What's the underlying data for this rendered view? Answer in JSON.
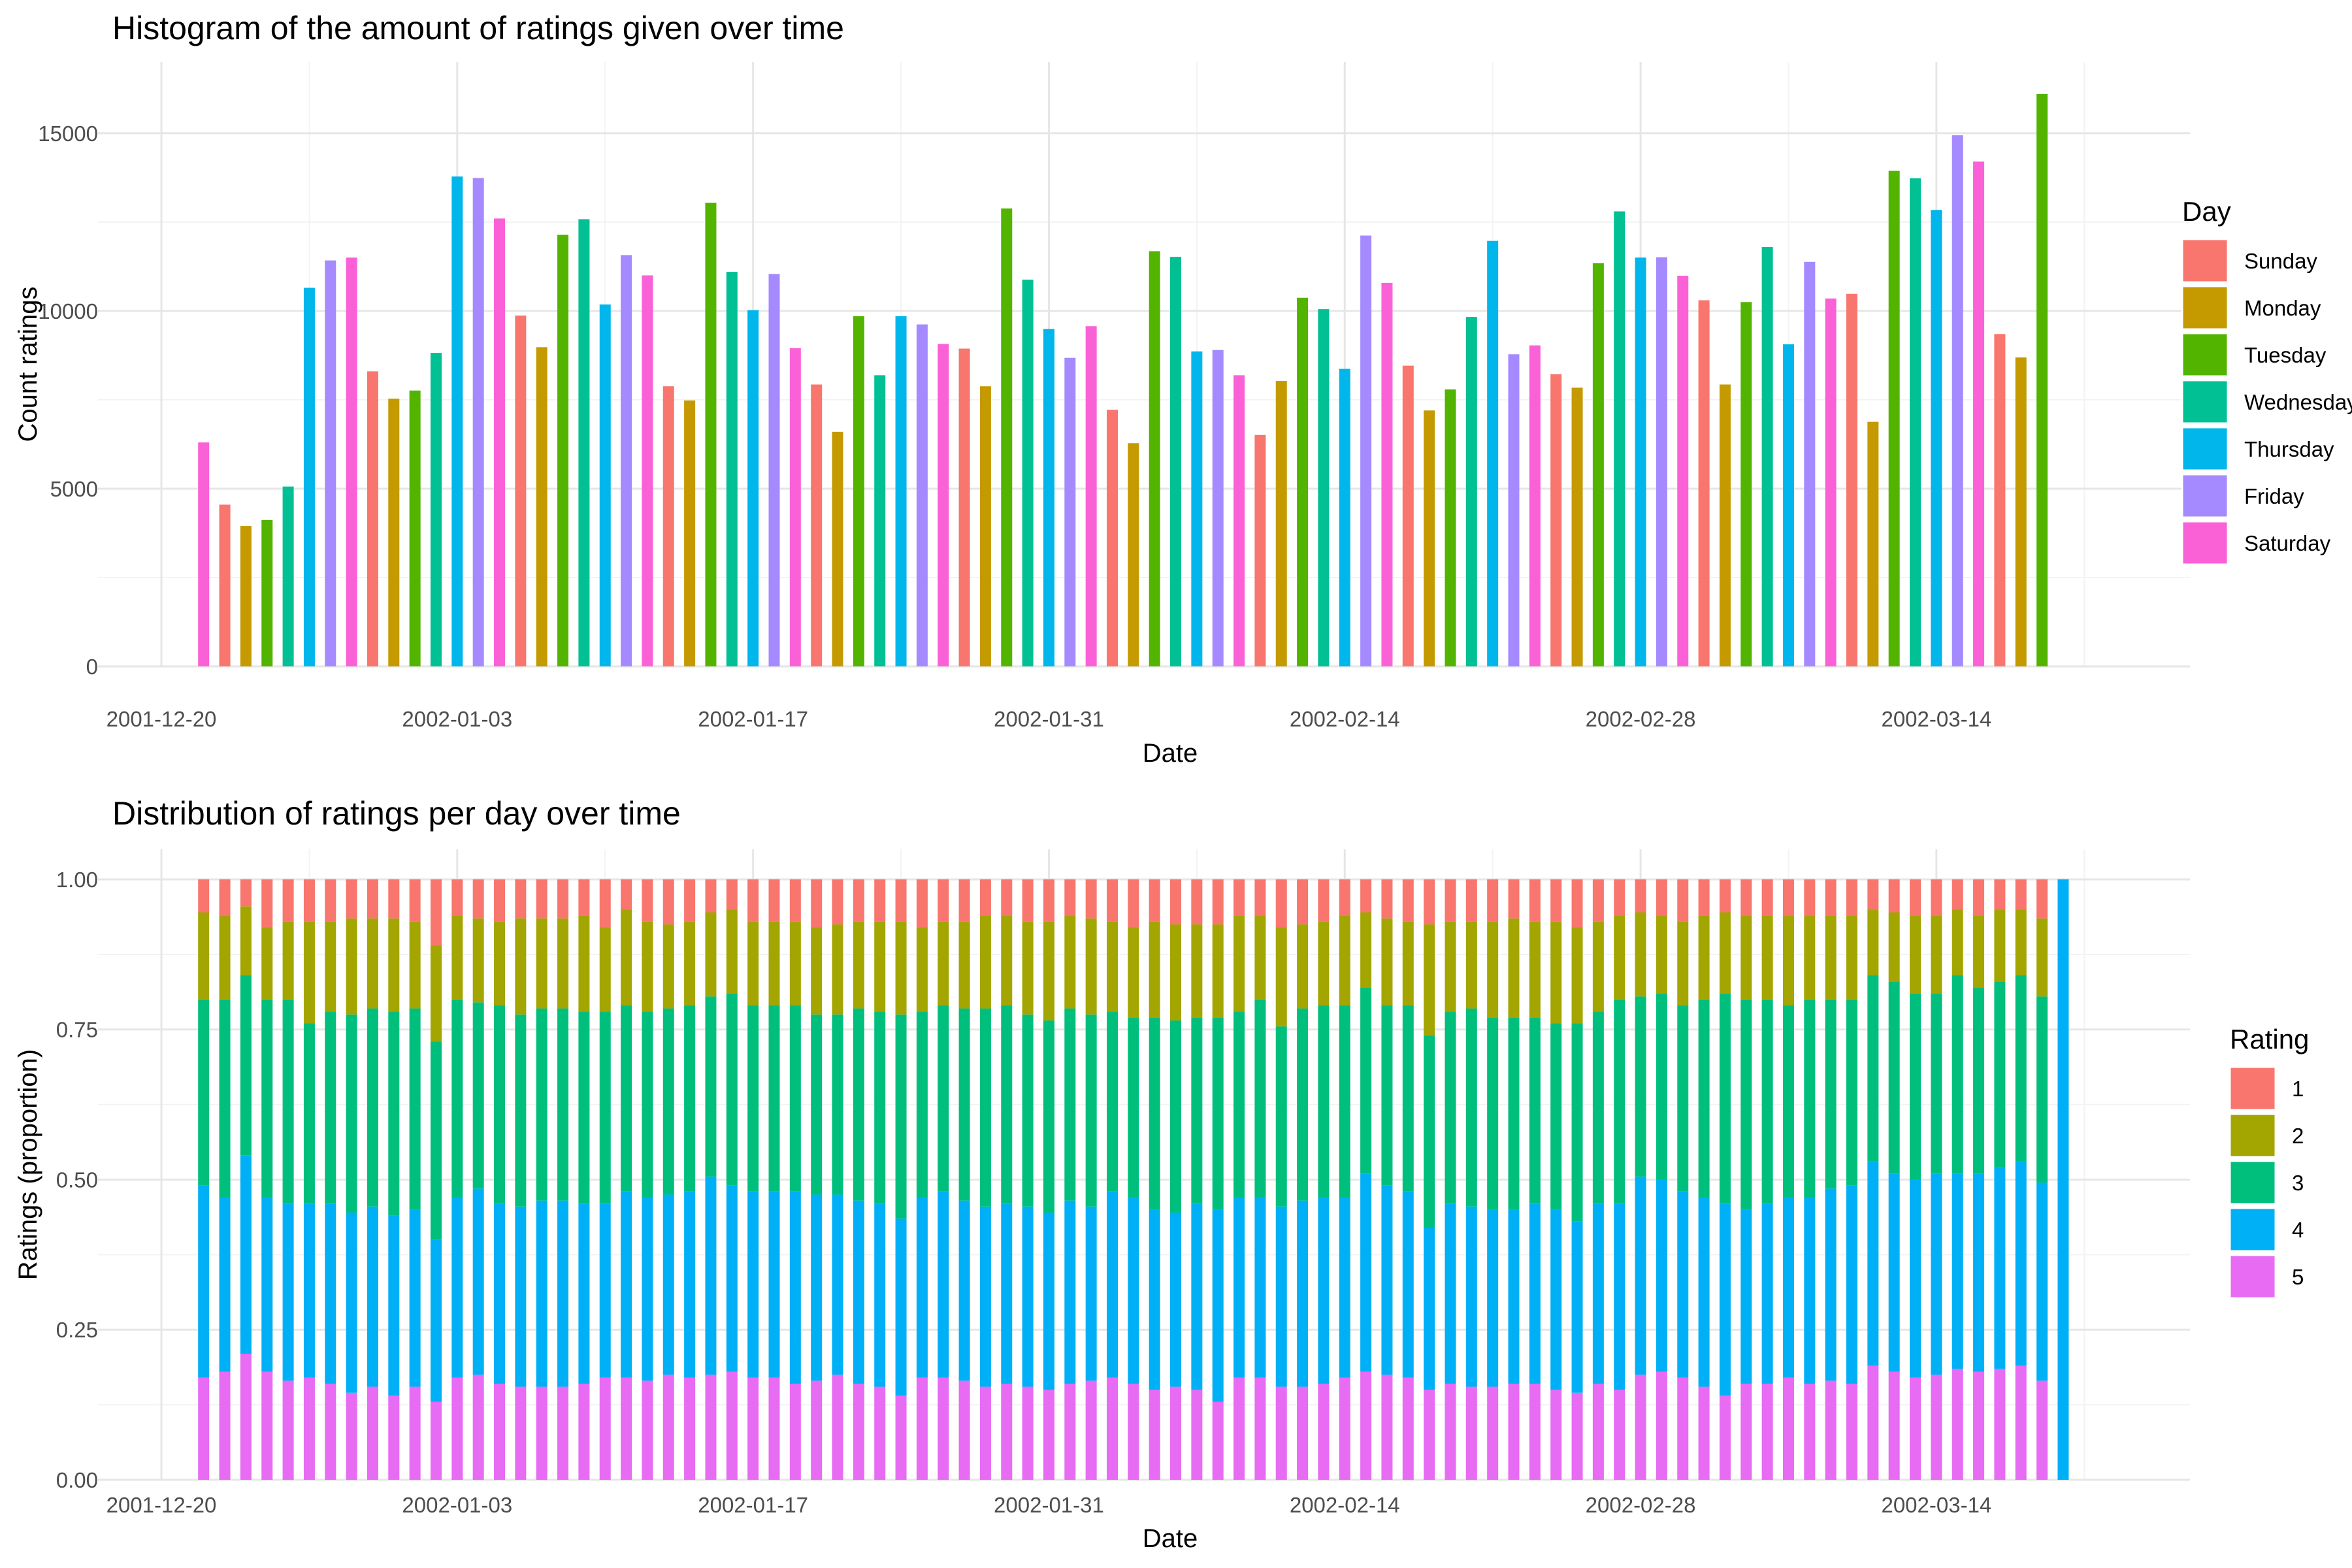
{
  "chart_data": [
    {
      "type": "bar",
      "title": "Histogram of the amount of ratings given over time",
      "xlabel": "Date",
      "ylabel": "Count ratings",
      "x_ticks": [
        "2001-12-20",
        "2002-01-03",
        "2002-01-17",
        "2002-01-31",
        "2002-02-14",
        "2002-02-28",
        "2002-03-14"
      ],
      "y_ticks": [
        "0",
        "5000",
        "10000",
        "15000"
      ],
      "ylim": [
        0,
        17000
      ],
      "xlim": [
        "2001-12-17",
        "2002-03-26"
      ],
      "grid": true,
      "legend": {
        "title": "Day",
        "position": "right",
        "entries": [
          "Sunday",
          "Monday",
          "Tuesday",
          "Wednesday",
          "Thursday",
          "Friday",
          "Saturday"
        ]
      },
      "colors": {
        "Sunday": "#F8766D",
        "Monday": "#C49A00",
        "Tuesday": "#53B400",
        "Wednesday": "#00C094",
        "Thursday": "#00B6EB",
        "Friday": "#A58AFF",
        "Saturday": "#FB61D7"
      },
      "start_date": "2001-12-22",
      "dates": [
        "2001-12-22",
        "2001-12-23",
        "2001-12-24",
        "2001-12-25",
        "2001-12-26",
        "2001-12-27",
        "2001-12-28",
        "2001-12-29",
        "2001-12-30",
        "2001-12-31",
        "2002-01-01",
        "2002-01-02",
        "2002-01-03",
        "2002-01-04",
        "2002-01-05",
        "2002-01-06",
        "2002-01-07",
        "2002-01-08",
        "2002-01-09",
        "2002-01-10",
        "2002-01-11",
        "2002-01-12",
        "2002-01-13",
        "2002-01-14",
        "2002-01-15",
        "2002-01-16",
        "2002-01-17",
        "2002-01-18",
        "2002-01-19",
        "2002-01-20",
        "2002-01-21",
        "2002-01-22",
        "2002-01-23",
        "2002-01-24",
        "2002-01-25",
        "2002-01-26",
        "2002-01-27",
        "2002-01-28",
        "2002-01-29",
        "2002-01-30",
        "2002-01-31",
        "2002-02-01",
        "2002-02-02",
        "2002-02-03",
        "2002-02-04",
        "2002-02-05",
        "2002-02-06",
        "2002-02-07",
        "2002-02-08",
        "2002-02-09",
        "2002-02-10",
        "2002-02-11",
        "2002-02-12",
        "2002-02-13",
        "2002-02-14",
        "2002-02-15",
        "2002-02-16",
        "2002-02-17",
        "2002-02-18",
        "2002-02-19",
        "2002-02-20",
        "2002-02-21",
        "2002-02-22",
        "2002-02-23",
        "2002-02-24",
        "2002-02-25",
        "2002-02-26",
        "2002-02-27",
        "2002-02-28",
        "2002-03-01",
        "2002-03-02",
        "2002-03-03",
        "2002-03-04",
        "2002-03-05",
        "2002-03-06",
        "2002-03-07",
        "2002-03-08",
        "2002-03-09",
        "2002-03-10",
        "2002-03-11",
        "2002-03-12",
        "2002-03-13",
        "2002-03-14",
        "2002-03-15",
        "2002-03-16",
        "2002-03-17",
        "2002-03-18",
        "2002-03-19"
      ],
      "values": [
        6300,
        4550,
        3950,
        4120,
        5060,
        10650,
        11420,
        11500,
        8300,
        7530,
        7760,
        8820,
        13780,
        13740,
        12600,
        9870,
        8980,
        12140,
        12580,
        10180,
        11570,
        11000,
        7880,
        7480,
        13040,
        11100,
        10020,
        11040,
        8950,
        7930,
        6600,
        9850,
        8190,
        9850,
        9620,
        9070,
        8940,
        7880,
        12880,
        10880,
        9490,
        8680,
        9570,
        7220,
        6280,
        11680,
        11520,
        8860,
        8900,
        8190,
        6510,
        8030,
        10370,
        10050,
        8370,
        12120,
        10790,
        8460,
        7200,
        7790,
        9830,
        11970,
        8780,
        9030,
        8220,
        7840,
        11340,
        12800,
        11500,
        11510,
        10990,
        10300,
        7930,
        10250,
        11800,
        9060,
        11380,
        10350,
        10480,
        6880,
        13940,
        13730,
        12840,
        14940,
        14200,
        9350,
        8690,
        16100
      ]
    },
    {
      "type": "bar",
      "stacked": true,
      "title": "Distribution of ratings per day over time",
      "xlabel": "Date",
      "ylabel": "Ratings (proportion)",
      "x_ticks": [
        "2001-12-20",
        "2002-01-03",
        "2002-01-17",
        "2002-01-31",
        "2002-02-14",
        "2002-02-28",
        "2002-03-14"
      ],
      "y_ticks": [
        "0.00",
        "0.25",
        "0.50",
        "0.75",
        "1.00"
      ],
      "ylim": [
        0,
        1.05
      ],
      "xlim": [
        "2001-12-17",
        "2002-03-26"
      ],
      "grid": true,
      "legend": {
        "title": "Rating",
        "position": "right",
        "entries": [
          "1",
          "2",
          "3",
          "4",
          "5"
        ]
      },
      "colors": {
        "1": "#F8766D",
        "2": "#A3A500",
        "3": "#00BF7D",
        "4": "#00B0F6",
        "5": "#E76BF3"
      },
      "start_date": "2001-12-22",
      "dates": [
        "2001-12-22",
        "2001-12-23",
        "2001-12-24",
        "2001-12-25",
        "2001-12-26",
        "2001-12-27",
        "2001-12-28",
        "2001-12-29",
        "2001-12-30",
        "2001-12-31",
        "2002-01-01",
        "2002-01-02",
        "2002-01-03",
        "2002-01-04",
        "2002-01-05",
        "2002-01-06",
        "2002-01-07",
        "2002-01-08",
        "2002-01-09",
        "2002-01-10",
        "2002-01-11",
        "2002-01-12",
        "2002-01-13",
        "2002-01-14",
        "2002-01-15",
        "2002-01-16",
        "2002-01-17",
        "2002-01-18",
        "2002-01-19",
        "2002-01-20",
        "2002-01-21",
        "2002-01-22",
        "2002-01-23",
        "2002-01-24",
        "2002-01-25",
        "2002-01-26",
        "2002-01-27",
        "2002-01-28",
        "2002-01-29",
        "2002-01-30",
        "2002-01-31",
        "2002-02-01",
        "2002-02-02",
        "2002-02-03",
        "2002-02-04",
        "2002-02-05",
        "2002-02-06",
        "2002-02-07",
        "2002-02-08",
        "2002-02-09",
        "2002-02-10",
        "2002-02-11",
        "2002-02-12",
        "2002-02-13",
        "2002-02-14",
        "2002-02-15",
        "2002-02-16",
        "2002-02-17",
        "2002-02-18",
        "2002-02-19",
        "2002-02-20",
        "2002-02-21",
        "2002-02-22",
        "2002-02-23",
        "2002-02-24",
        "2002-02-25",
        "2002-02-26",
        "2002-02-27",
        "2002-02-28",
        "2002-03-01",
        "2002-03-02",
        "2002-03-03",
        "2002-03-04",
        "2002-03-05",
        "2002-03-06",
        "2002-03-07",
        "2002-03-08",
        "2002-03-09",
        "2002-03-10",
        "2002-03-11",
        "2002-03-12",
        "2002-03-13",
        "2002-03-14",
        "2002-03-15",
        "2002-03-16",
        "2002-03-17",
        "2002-03-18",
        "2002-03-19",
        "2002-03-20"
      ],
      "series": [
        {
          "name": "5",
          "values": [
            0.17,
            0.18,
            0.21,
            0.18,
            0.165,
            0.17,
            0.16,
            0.145,
            0.155,
            0.14,
            0.155,
            0.13,
            0.17,
            0.175,
            0.16,
            0.155,
            0.155,
            0.155,
            0.16,
            0.17,
            0.17,
            0.165,
            0.175,
            0.17,
            0.175,
            0.18,
            0.17,
            0.17,
            0.16,
            0.165,
            0.175,
            0.16,
            0.155,
            0.14,
            0.17,
            0.17,
            0.165,
            0.155,
            0.16,
            0.155,
            0.15,
            0.16,
            0.165,
            0.17,
            0.16,
            0.15,
            0.155,
            0.15,
            0.13,
            0.17,
            0.17,
            0.155,
            0.155,
            0.16,
            0.17,
            0.18,
            0.175,
            0.17,
            0.15,
            0.16,
            0.155,
            0.155,
            0.16,
            0.16,
            0.15,
            0.145,
            0.16,
            0.15,
            0.175,
            0.18,
            0.17,
            0.155,
            0.14,
            0.16,
            0.16,
            0.17,
            0.16,
            0.165,
            0.16,
            0.19,
            0.18,
            0.17,
            0.175,
            0.185,
            0.18,
            0.185,
            0.19,
            0.165,
            0.0
          ]
        },
        {
          "name": "4",
          "values": [
            0.32,
            0.29,
            0.33,
            0.29,
            0.295,
            0.29,
            0.3,
            0.3,
            0.3,
            0.3,
            0.295,
            0.27,
            0.3,
            0.31,
            0.3,
            0.3,
            0.31,
            0.31,
            0.3,
            0.29,
            0.31,
            0.305,
            0.3,
            0.31,
            0.33,
            0.31,
            0.31,
            0.31,
            0.32,
            0.31,
            0.3,
            0.305,
            0.305,
            0.295,
            0.3,
            0.31,
            0.3,
            0.3,
            0.3,
            0.3,
            0.295,
            0.305,
            0.29,
            0.31,
            0.31,
            0.3,
            0.29,
            0.31,
            0.32,
            0.3,
            0.3,
            0.3,
            0.31,
            0.31,
            0.3,
            0.33,
            0.315,
            0.31,
            0.27,
            0.3,
            0.3,
            0.295,
            0.29,
            0.3,
            0.3,
            0.285,
            0.3,
            0.31,
            0.33,
            0.32,
            0.31,
            0.315,
            0.32,
            0.29,
            0.3,
            0.3,
            0.31,
            0.32,
            0.33,
            0.34,
            0.33,
            0.33,
            0.335,
            0.325,
            0.33,
            0.335,
            0.34,
            0.33,
            1.0
          ]
        },
        {
          "name": "3",
          "values": [
            0.31,
            0.33,
            0.3,
            0.33,
            0.34,
            0.3,
            0.32,
            0.33,
            0.33,
            0.34,
            0.335,
            0.33,
            0.33,
            0.31,
            0.33,
            0.32,
            0.32,
            0.32,
            0.32,
            0.32,
            0.31,
            0.31,
            0.31,
            0.31,
            0.3,
            0.32,
            0.31,
            0.31,
            0.31,
            0.3,
            0.3,
            0.32,
            0.32,
            0.34,
            0.31,
            0.31,
            0.32,
            0.33,
            0.33,
            0.32,
            0.32,
            0.32,
            0.32,
            0.3,
            0.3,
            0.32,
            0.32,
            0.31,
            0.32,
            0.31,
            0.33,
            0.3,
            0.32,
            0.32,
            0.32,
            0.31,
            0.3,
            0.31,
            0.32,
            0.32,
            0.33,
            0.32,
            0.32,
            0.31,
            0.31,
            0.33,
            0.32,
            0.34,
            0.3,
            0.31,
            0.31,
            0.33,
            0.35,
            0.35,
            0.34,
            0.32,
            0.33,
            0.315,
            0.31,
            0.31,
            0.32,
            0.31,
            0.3,
            0.33,
            0.31,
            0.31,
            0.31,
            0.31,
            0.0
          ]
        },
        {
          "name": "2",
          "values": [
            0.145,
            0.14,
            0.115,
            0.12,
            0.13,
            0.17,
            0.15,
            0.16,
            0.15,
            0.155,
            0.145,
            0.16,
            0.14,
            0.14,
            0.14,
            0.16,
            0.15,
            0.15,
            0.16,
            0.14,
            0.16,
            0.15,
            0.14,
            0.14,
            0.14,
            0.14,
            0.14,
            0.14,
            0.14,
            0.145,
            0.15,
            0.145,
            0.15,
            0.155,
            0.14,
            0.14,
            0.145,
            0.155,
            0.15,
            0.155,
            0.165,
            0.155,
            0.16,
            0.15,
            0.15,
            0.16,
            0.16,
            0.155,
            0.155,
            0.16,
            0.14,
            0.165,
            0.14,
            0.14,
            0.15,
            0.125,
            0.145,
            0.14,
            0.185,
            0.15,
            0.145,
            0.16,
            0.165,
            0.16,
            0.17,
            0.16,
            0.15,
            0.14,
            0.14,
            0.13,
            0.14,
            0.14,
            0.135,
            0.14,
            0.14,
            0.15,
            0.14,
            0.14,
            0.14,
            0.11,
            0.115,
            0.13,
            0.13,
            0.11,
            0.12,
            0.12,
            0.11,
            0.13,
            0.0
          ]
        },
        {
          "name": "1",
          "values": [
            0.055,
            0.06,
            0.045,
            0.08,
            0.07,
            0.07,
            0.07,
            0.065,
            0.065,
            0.065,
            0.07,
            0.11,
            0.06,
            0.065,
            0.07,
            0.065,
            0.065,
            0.065,
            0.06,
            0.08,
            0.05,
            0.07,
            0.075,
            0.07,
            0.055,
            0.05,
            0.07,
            0.07,
            0.07,
            0.08,
            0.075,
            0.07,
            0.07,
            0.07,
            0.08,
            0.07,
            0.07,
            0.06,
            0.06,
            0.07,
            0.07,
            0.06,
            0.065,
            0.07,
            0.08,
            0.07,
            0.075,
            0.075,
            0.075,
            0.06,
            0.06,
            0.08,
            0.075,
            0.07,
            0.06,
            0.055,
            0.065,
            0.07,
            0.075,
            0.07,
            0.07,
            0.07,
            0.065,
            0.07,
            0.07,
            0.08,
            0.07,
            0.06,
            0.055,
            0.06,
            0.07,
            0.06,
            0.055,
            0.06,
            0.06,
            0.06,
            0.06,
            0.06,
            0.06,
            0.05,
            0.055,
            0.06,
            0.06,
            0.05,
            0.06,
            0.05,
            0.05,
            0.065,
            0.0
          ]
        }
      ]
    }
  ]
}
